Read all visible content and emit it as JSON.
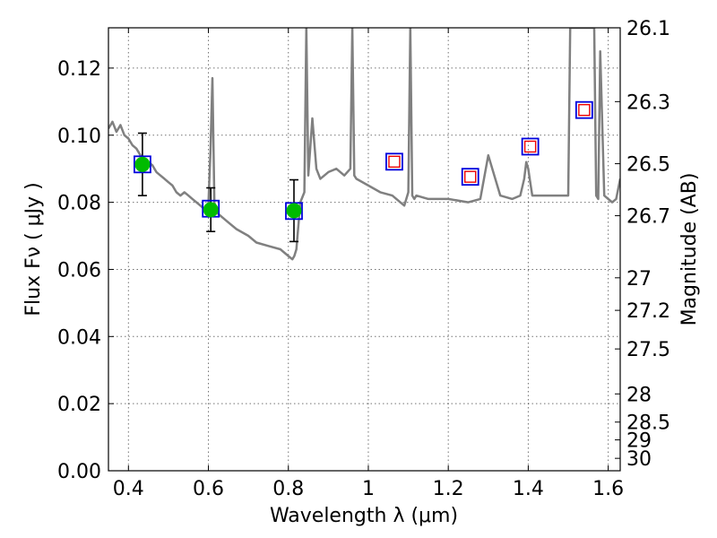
{
  "chart_data": {
    "type": "scatter",
    "title": "",
    "xlabel": "Wavelength  λ (μm)",
    "ylabel": "Flux  Fν  ( μJy )",
    "y2label": "Magnitude (AB)",
    "xlim": [
      0.35,
      1.63
    ],
    "ylim": [
      0.0,
      0.132
    ],
    "grid": true,
    "colors": {
      "model": "#808080",
      "observed_fill": "#00bb00",
      "model_phot_edge": "#0000dd",
      "upper_limit_edge": "#ee0000",
      "errorbar": "#000000"
    },
    "x_ticks": [
      0.4,
      0.6,
      0.8,
      1.0,
      1.2,
      1.4,
      1.6
    ],
    "x_tick_labels": [
      "0.4",
      "0.6",
      "0.8",
      "1",
      "1.2",
      "1.4",
      "1.6"
    ],
    "y_ticks": [
      0.0,
      0.02,
      0.04,
      0.06,
      0.08,
      0.1,
      0.12
    ],
    "y_tick_labels": [
      "0.00",
      "0.02",
      "0.04",
      "0.06",
      "0.08",
      "0.10",
      "0.12"
    ],
    "y2_tick_labels": [
      "26.1",
      "26.3",
      "26.5",
      "26.7",
      "27",
      "27.2",
      "27.5",
      "28",
      "28.5",
      "29",
      "30"
    ],
    "y2_tick_flux": [
      0.132,
      0.11,
      0.0915,
      0.076,
      0.0575,
      0.0478,
      0.0363,
      0.0229,
      0.0145,
      0.0092,
      0.0037
    ],
    "observed": [
      {
        "x": 0.435,
        "y": 0.0913,
        "yerr": 0.0093
      },
      {
        "x": 0.606,
        "y": 0.0778,
        "yerr": 0.0065
      },
      {
        "x": 0.814,
        "y": 0.0775,
        "yerr": 0.0092
      }
    ],
    "model_photometry": [
      {
        "x": 0.435,
        "y": 0.0913
      },
      {
        "x": 0.606,
        "y": 0.0781
      },
      {
        "x": 0.814,
        "y": 0.0774
      },
      {
        "x": 1.065,
        "y": 0.0921
      },
      {
        "x": 1.255,
        "y": 0.0876
      },
      {
        "x": 1.405,
        "y": 0.0966
      },
      {
        "x": 1.54,
        "y": 0.1075
      }
    ],
    "upper_limits": [
      {
        "x": 1.065,
        "y": 0.0921
      },
      {
        "x": 1.255,
        "y": 0.0876
      },
      {
        "x": 1.405,
        "y": 0.0966
      },
      {
        "x": 1.54,
        "y": 0.1075
      }
    ],
    "model_spectrum": {
      "x": [
        0.35,
        0.36,
        0.37,
        0.38,
        0.39,
        0.4,
        0.41,
        0.42,
        0.43,
        0.44,
        0.45,
        0.46,
        0.47,
        0.48,
        0.49,
        0.5,
        0.51,
        0.52,
        0.53,
        0.54,
        0.55,
        0.56,
        0.57,
        0.58,
        0.59,
        0.6,
        0.605,
        0.61,
        0.613,
        0.615,
        0.62,
        0.63,
        0.65,
        0.67,
        0.7,
        0.72,
        0.75,
        0.78,
        0.8,
        0.81,
        0.815,
        0.82,
        0.83,
        0.84,
        0.845,
        0.85,
        0.86,
        0.87,
        0.88,
        0.9,
        0.92,
        0.94,
        0.955,
        0.96,
        0.965,
        0.97,
        1.0,
        1.03,
        1.06,
        1.08,
        1.09,
        1.1,
        1.105,
        1.11,
        1.115,
        1.12,
        1.15,
        1.2,
        1.25,
        1.28,
        1.3,
        1.33,
        1.36,
        1.38,
        1.39,
        1.395,
        1.4,
        1.405,
        1.41,
        1.42,
        1.45,
        1.48,
        1.5,
        1.505,
        1.51,
        1.515,
        1.52,
        1.53,
        1.54,
        1.55,
        1.56,
        1.565,
        1.57,
        1.575,
        1.58,
        1.59,
        1.6,
        1.61,
        1.62,
        1.63
      ],
      "y": [
        0.102,
        0.104,
        0.101,
        0.103,
        0.1,
        0.099,
        0.097,
        0.096,
        0.094,
        0.093,
        0.092,
        0.091,
        0.089,
        0.088,
        0.087,
        0.086,
        0.085,
        0.083,
        0.082,
        0.083,
        0.082,
        0.081,
        0.08,
        0.079,
        0.078,
        0.079,
        0.095,
        0.117,
        0.095,
        0.08,
        0.077,
        0.076,
        0.074,
        0.072,
        0.07,
        0.068,
        0.067,
        0.066,
        0.064,
        0.063,
        0.064,
        0.066,
        0.08,
        0.083,
        0.132,
        0.088,
        0.105,
        0.09,
        0.087,
        0.089,
        0.09,
        0.088,
        0.09,
        0.132,
        0.088,
        0.087,
        0.085,
        0.083,
        0.082,
        0.08,
        0.079,
        0.083,
        0.132,
        0.082,
        0.081,
        0.082,
        0.081,
        0.081,
        0.08,
        0.081,
        0.094,
        0.082,
        0.081,
        0.082,
        0.087,
        0.092,
        0.09,
        0.086,
        0.082,
        0.082,
        0.082,
        0.082,
        0.082,
        0.132,
        0.132,
        0.132,
        0.132,
        0.132,
        0.132,
        0.132,
        0.132,
        0.132,
        0.082,
        0.081,
        0.125,
        0.082,
        0.081,
        0.08,
        0.081,
        0.087
      ]
    }
  }
}
